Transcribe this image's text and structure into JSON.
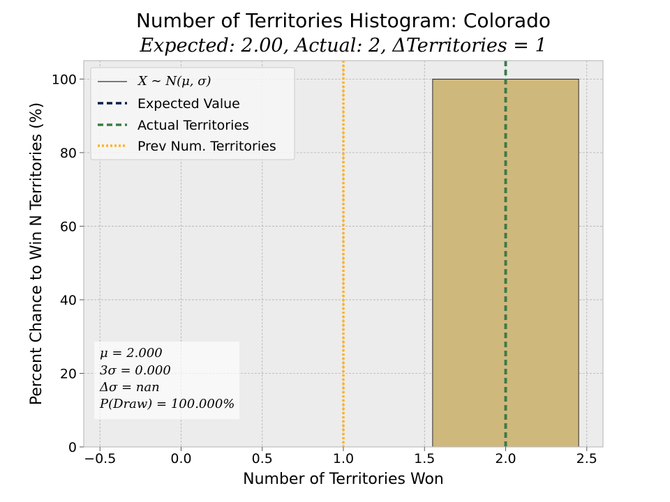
{
  "chart_data": {
    "type": "bar",
    "title": "Number of Territories Histogram: Colorado",
    "subtitle": "Expected: 2.00, Actual: 2, ΔTerritories = 1",
    "xlabel": "Number of Territories Won",
    "ylabel": "Percent Chance to Win N Territories (%)",
    "xlim": [
      -0.6,
      2.6
    ],
    "ylim": [
      0,
      105
    ],
    "xticks": [
      -0.5,
      0.0,
      0.5,
      1.0,
      1.5,
      2.0,
      2.5
    ],
    "xtick_labels": [
      "−0.5",
      "0.0",
      "0.5",
      "1.0",
      "1.5",
      "2.0",
      "2.5"
    ],
    "yticks": [
      0,
      20,
      40,
      60,
      80,
      100
    ],
    "ytick_labels": [
      "0",
      "20",
      "40",
      "60",
      "80",
      "100"
    ],
    "grid": true,
    "bars": [
      {
        "x_start": 1.55,
        "x_end": 2.45,
        "value": 100,
        "color": "#cfb87c"
      }
    ],
    "lines": [
      {
        "name": "Expected Value",
        "x": 2.0,
        "color": "#0b1f4b",
        "style": "dashed"
      },
      {
        "name": "Actual Territories",
        "x": 2.0,
        "color": "#3a7d44",
        "style": "dashed"
      },
      {
        "name": "Prev Num. Territories",
        "x": 1.0,
        "color": "#ffb21f",
        "style": "dotted"
      }
    ],
    "legend": {
      "placement": "top-left",
      "entries": [
        {
          "label": "X ∼ N(μ, σ)",
          "color": "#000000",
          "style": "solid",
          "math": true
        },
        {
          "label": "Expected Value",
          "color": "#0b1f4b",
          "style": "dashed"
        },
        {
          "label": "Actual Territories",
          "color": "#3a7d44",
          "style": "dashed"
        },
        {
          "label": "Prev Num. Territories",
          "color": "#ffb21f",
          "style": "dotted"
        }
      ]
    },
    "stats_box": {
      "placement": "bottom-left",
      "lines": [
        "μ = 2.000",
        "3σ = 0.000",
        "Δσ = nan",
        "P(Draw) = 100.000%"
      ]
    },
    "colors": {
      "plot_background": "#ececec",
      "grid": "#b0b0b0",
      "bar": "#cfb87c"
    }
  }
}
